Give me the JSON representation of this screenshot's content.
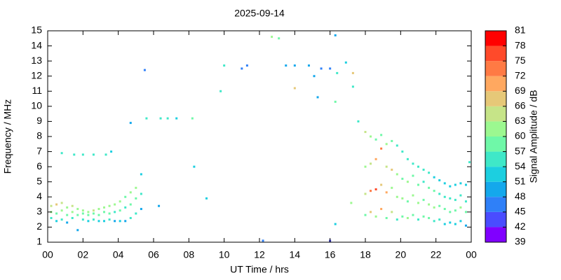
{
  "chart_data": {
    "type": "scatter",
    "title": "2025-09-14",
    "xlabel": "UT Time / hrs",
    "ylabel": "Frequency / MHz",
    "xlim": [
      0,
      24
    ],
    "ylim": [
      1,
      15
    ],
    "xticks": [
      {
        "value": 0,
        "label": "00"
      },
      {
        "value": 2,
        "label": "02"
      },
      {
        "value": 4,
        "label": "04"
      },
      {
        "value": 6,
        "label": "06"
      },
      {
        "value": 8,
        "label": "08"
      },
      10,
      12,
      14,
      16,
      18,
      20,
      22,
      {
        "value": 24,
        "label": "00"
      }
    ],
    "yticks": [
      1,
      2,
      3,
      4,
      5,
      6,
      7,
      8,
      9,
      10,
      11,
      12,
      13,
      14,
      15
    ],
    "colorbar": {
      "label": "Signal Amplitude / dB",
      "clim": [
        39,
        81
      ],
      "ticks": [
        39,
        42,
        45,
        48,
        51,
        54,
        57,
        60,
        63,
        66,
        69,
        72,
        75,
        78,
        81
      ],
      "colors": [
        "#8000ff",
        "#4a4cff",
        "#2f80f8",
        "#14a8ec",
        "#1ccfe0",
        "#3fe8c8",
        "#6ff8a8",
        "#9cf890",
        "#c6e488",
        "#e6c878",
        "#ffa860",
        "#ff7a44",
        "#ff4a2a",
        "#ff0000"
      ]
    },
    "x": [
      0.2,
      0.2,
      0.2,
      0.5,
      0.5,
      0.5,
      0.8,
      0.8,
      0.8,
      1.1,
      1.1,
      1.1,
      1.4,
      1.4,
      1.4,
      1.7,
      1.7,
      1.7,
      2.0,
      2.0,
      2.0,
      2.3,
      2.3,
      2.3,
      2.6,
      2.6,
      2.6,
      2.9,
      2.9,
      2.9,
      3.2,
      3.2,
      3.2,
      3.5,
      3.5,
      3.5,
      3.8,
      3.8,
      3.8,
      4.1,
      4.1,
      4.1,
      4.4,
      4.4,
      4.4,
      4.7,
      4.7,
      4.7,
      5.0,
      5.0,
      5.0,
      5.3,
      5.3,
      5.3,
      18.0,
      18.0,
      18.0,
      18.0,
      18.3,
      18.3,
      18.3,
      18.3,
      18.6,
      18.6,
      18.6,
      18.6,
      18.9,
      18.9,
      18.9,
      18.9,
      19.2,
      19.2,
      19.2,
      19.2,
      19.5,
      19.5,
      19.5,
      19.5,
      19.8,
      19.8,
      19.8,
      19.8,
      20.1,
      20.1,
      20.1,
      20.1,
      20.4,
      20.4,
      20.4,
      20.4,
      20.7,
      20.7,
      20.7,
      20.7,
      21.0,
      21.0,
      21.0,
      21.0,
      21.3,
      21.3,
      21.3,
      21.3,
      21.6,
      21.6,
      21.6,
      21.6,
      21.9,
      21.9,
      21.9,
      21.9,
      22.2,
      22.2,
      22.2,
      22.2,
      22.5,
      22.5,
      22.5,
      22.5,
      22.8,
      22.8,
      22.8,
      22.8,
      23.1,
      23.1,
      23.1,
      23.1,
      23.4,
      23.4,
      23.4,
      23.4,
      23.7,
      23.7,
      23.7,
      23.7,
      0.8,
      1.5,
      2.0,
      2.6,
      3.3,
      3.6,
      4.7,
      5.5,
      5.6,
      6.4,
      6.8,
      7.3,
      8.2,
      8.3,
      9.0,
      9.8,
      10.0,
      11.0,
      11.3,
      12.2,
      12.7,
      13.1,
      13.5,
      14.0,
      14.0,
      14.8,
      15.1,
      15.3,
      15.5,
      16.0,
      16.0,
      16.3,
      16.4,
      16.3,
      16.9,
      17.3,
      17.3,
      17.6,
      17.2,
      16.3,
      6.3,
      23.9
    ],
    "y": [
      2.6,
      3.0,
      3.4,
      2.4,
      2.9,
      3.5,
      2.5,
      3.1,
      3.6,
      2.3,
      2.8,
      3.3,
      2.6,
      3.0,
      3.4,
      1.8,
      2.8,
      3.2,
      2.5,
      2.9,
      3.1,
      2.4,
      2.8,
      3.0,
      2.5,
      2.9,
      3.1,
      2.4,
      2.8,
      3.2,
      2.4,
      3.0,
      3.3,
      2.5,
      2.9,
      3.4,
      2.4,
      3.0,
      3.5,
      2.4,
      3.1,
      3.7,
      2.4,
      3.3,
      4.0,
      2.6,
      3.5,
      4.3,
      2.9,
      3.9,
      4.6,
      3.2,
      4.2,
      5.5,
      2.8,
      4.2,
      6.0,
      8.3,
      3.0,
      4.4,
      6.2,
      8.0,
      2.7,
      4.5,
      6.5,
      7.8,
      3.2,
      4.8,
      7.2,
      8.1,
      2.6,
      4.3,
      6.0,
      7.5,
      3.0,
      4.6,
      5.8,
      7.7,
      2.5,
      4.0,
      5.5,
      7.4,
      2.7,
      3.9,
      5.2,
      7.0,
      2.6,
      3.7,
      5.0,
      6.5,
      2.8,
      4.1,
      5.4,
      6.2,
      2.5,
      3.6,
      4.8,
      6.0,
      2.7,
      3.8,
      5.0,
      5.8,
      2.6,
      3.5,
      4.6,
      5.6,
      2.4,
      3.3,
      4.4,
      5.3,
      2.5,
      3.4,
      4.2,
      5.1,
      2.2,
      3.2,
      4.0,
      4.9,
      2.3,
      3.0,
      3.9,
      4.7,
      2.2,
      3.1,
      3.8,
      4.8,
      2.4,
      3.3,
      4.1,
      4.9,
      2.1,
      3.0,
      3.7,
      4.8,
      6.9,
      6.8,
      6.8,
      6.8,
      6.8,
      7.0,
      8.9,
      12.4,
      9.2,
      9.2,
      9.2,
      9.2,
      9.2,
      6.0,
      3.9,
      11.0,
      12.7,
      12.5,
      12.7,
      1.1,
      14.6,
      14.5,
      12.7,
      12.7,
      11.2,
      12.7,
      12.0,
      10.6,
      12.5,
      12.5,
      1.1,
      14.7,
      12.2,
      10.3,
      12.9,
      12.2,
      11.3,
      9.0,
      3.6,
      2.2,
      3.4,
      6.3
    ],
    "values": [
      54,
      60,
      63,
      52,
      58,
      66,
      55,
      61,
      64,
      50,
      57,
      62,
      56,
      60,
      65,
      48,
      57,
      61,
      55,
      58,
      62,
      53,
      57,
      60,
      54,
      59,
      63,
      52,
      58,
      61,
      51,
      57,
      60,
      55,
      58,
      62,
      50,
      56,
      61,
      51,
      57,
      60,
      50,
      55,
      59,
      54,
      57,
      61,
      55,
      58,
      62,
      50,
      56,
      52,
      57,
      63,
      60,
      64,
      66,
      72,
      63,
      61,
      60,
      75,
      69,
      58,
      70,
      66,
      74,
      57,
      58,
      69,
      63,
      60,
      63,
      60,
      66,
      57,
      55,
      62,
      60,
      56,
      57,
      60,
      58,
      55,
      60,
      57,
      61,
      56,
      58,
      61,
      57,
      55,
      56,
      60,
      58,
      54,
      57,
      59,
      56,
      55,
      58,
      61,
      57,
      54,
      55,
      60,
      57,
      53,
      54,
      59,
      56,
      52,
      52,
      58,
      55,
      51,
      53,
      57,
      56,
      52,
      51,
      58,
      55,
      51,
      53,
      60,
      56,
      52,
      50,
      57,
      55,
      51,
      54,
      54,
      55,
      54,
      55,
      52,
      49,
      45,
      54,
      55,
      55,
      52,
      57,
      52,
      52,
      55,
      55,
      45,
      47,
      45,
      60,
      57,
      49,
      49,
      66,
      50,
      49,
      50,
      47,
      47,
      44,
      48,
      55,
      57,
      52,
      66,
      55,
      55,
      60,
      51,
      50,
      54
    ]
  }
}
